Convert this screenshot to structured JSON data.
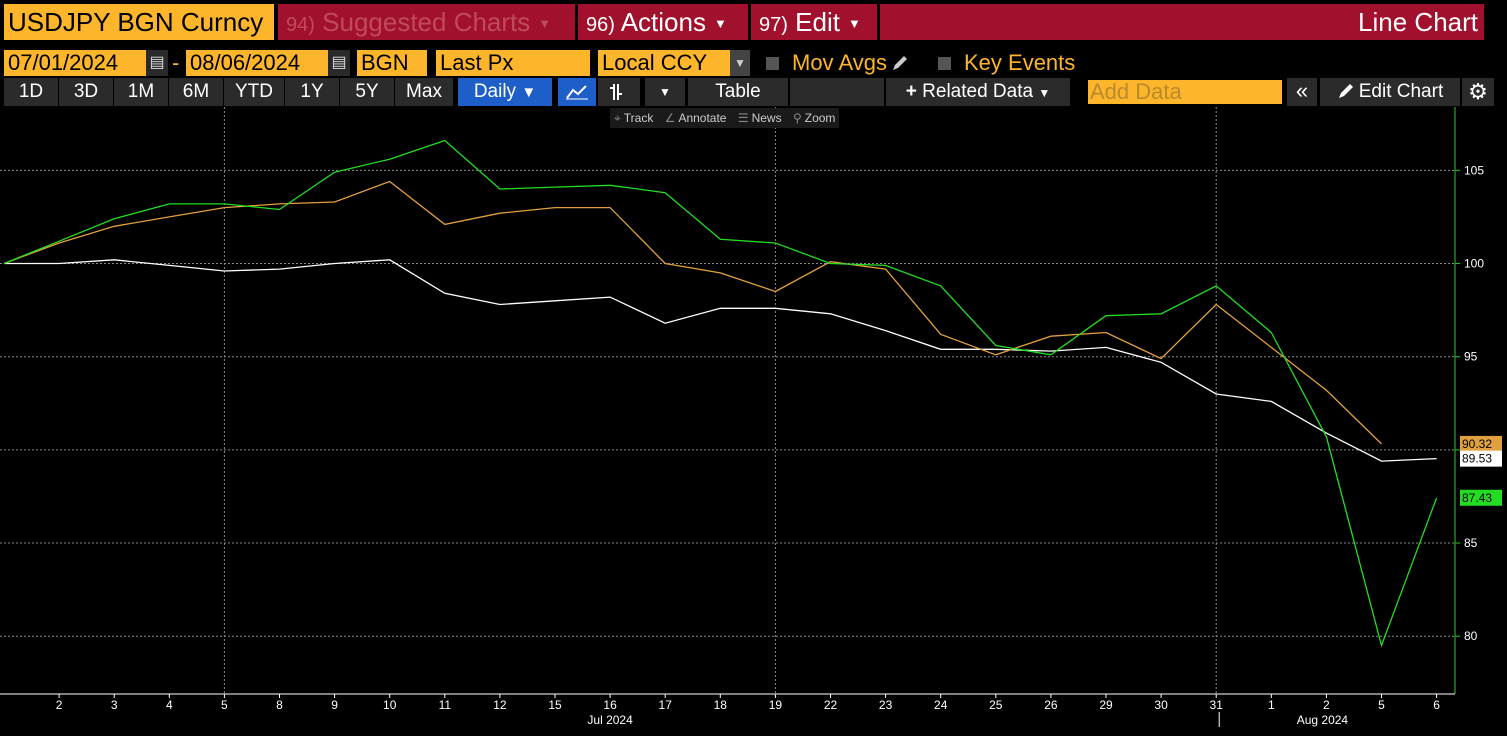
{
  "header": {
    "ticker": "USDJPY BGN Curncy",
    "suggested": {
      "num": "94)",
      "label": "Suggested Charts"
    },
    "actions": {
      "num": "96)",
      "label": "Actions"
    },
    "edit": {
      "num": "97)",
      "label": "Edit"
    },
    "chart_type": "Line Chart"
  },
  "controls": {
    "start_date": "07/01/2024",
    "end_date": "08/06/2024",
    "dash": "-",
    "source": "BGN",
    "field": "Last Px",
    "currency": "Local CCY",
    "mov_avgs": "Mov Avgs",
    "key_events": "Key Events"
  },
  "ranges": [
    "1D",
    "3D",
    "1M",
    "6M",
    "YTD",
    "1Y",
    "5Y",
    "Max"
  ],
  "toolbar": {
    "frequency": "Daily",
    "table": "Table",
    "related_data": "Related Data",
    "add_data_placeholder": "Add Data",
    "edit_chart": "Edit Chart"
  },
  "chart_tools": [
    "Track",
    "Annotate",
    "News",
    "Zoom"
  ],
  "colors": {
    "brand_amber": "#fdb52b",
    "menu_red": "#a1112d",
    "active_blue": "#1e5ec8",
    "series_white": "#ffffff",
    "series_amber": "#e0a040",
    "series_green": "#22dd22",
    "axis_green": "#22cc22"
  },
  "chart_data": {
    "type": "line",
    "x": [
      "2024-07-01",
      "2024-07-02",
      "2024-07-03",
      "2024-07-04",
      "2024-07-05",
      "2024-07-08",
      "2024-07-09",
      "2024-07-10",
      "2024-07-11",
      "2024-07-12",
      "2024-07-15",
      "2024-07-16",
      "2024-07-17",
      "2024-07-18",
      "2024-07-19",
      "2024-07-22",
      "2024-07-23",
      "2024-07-24",
      "2024-07-25",
      "2024-07-26",
      "2024-07-29",
      "2024-07-30",
      "2024-07-31",
      "2024-08-01",
      "2024-08-02",
      "2024-08-05",
      "2024-08-06"
    ],
    "x_tick_labels": [
      "2",
      "3",
      "4",
      "5",
      "8",
      "9",
      "10",
      "11",
      "12",
      "15",
      "16",
      "17",
      "18",
      "19",
      "22",
      "23",
      "24",
      "25",
      "26",
      "29",
      "30",
      "31",
      "1",
      "2",
      "5",
      "6"
    ],
    "month_labels": [
      "Jul 2024",
      "Aug 2024"
    ],
    "series": [
      {
        "color": "#ffffff",
        "values": [
          100,
          100.0,
          100.2,
          99.9,
          99.6,
          99.7,
          100.0,
          100.2,
          98.4,
          97.8,
          98.0,
          98.2,
          96.8,
          97.6,
          97.6,
          97.3,
          96.4,
          95.4,
          95.4,
          95.3,
          95.5,
          94.7,
          93.0,
          92.6,
          90.9,
          89.4,
          89.53
        ],
        "last_label": "89.53"
      },
      {
        "color": "#e0a040",
        "values": [
          100,
          101.1,
          102.0,
          102.5,
          103.0,
          103.2,
          103.3,
          104.4,
          102.1,
          102.7,
          103.0,
          103.0,
          100.0,
          99.5,
          98.5,
          100.1,
          99.7,
          96.2,
          95.1,
          96.1,
          96.3,
          94.9,
          97.8,
          95.5,
          93.2,
          90.32,
          null
        ],
        "last_label": "90.32"
      },
      {
        "color": "#22dd22",
        "values": [
          100,
          101.2,
          102.4,
          103.2,
          103.2,
          102.9,
          104.9,
          105.6,
          106.6,
          104.0,
          104.1,
          104.2,
          103.8,
          101.3,
          101.1,
          100.0,
          99.9,
          98.8,
          95.6,
          95.1,
          97.2,
          97.3,
          98.8,
          96.3,
          90.7,
          79.5,
          87.43
        ],
        "last_label": "87.43"
      }
    ],
    "y_ticks": [
      80,
      85,
      90,
      95,
      100,
      105
    ],
    "ylim": [
      76.9,
      108.4
    ],
    "xlabel": "",
    "ylabel": "",
    "grid": true
  }
}
